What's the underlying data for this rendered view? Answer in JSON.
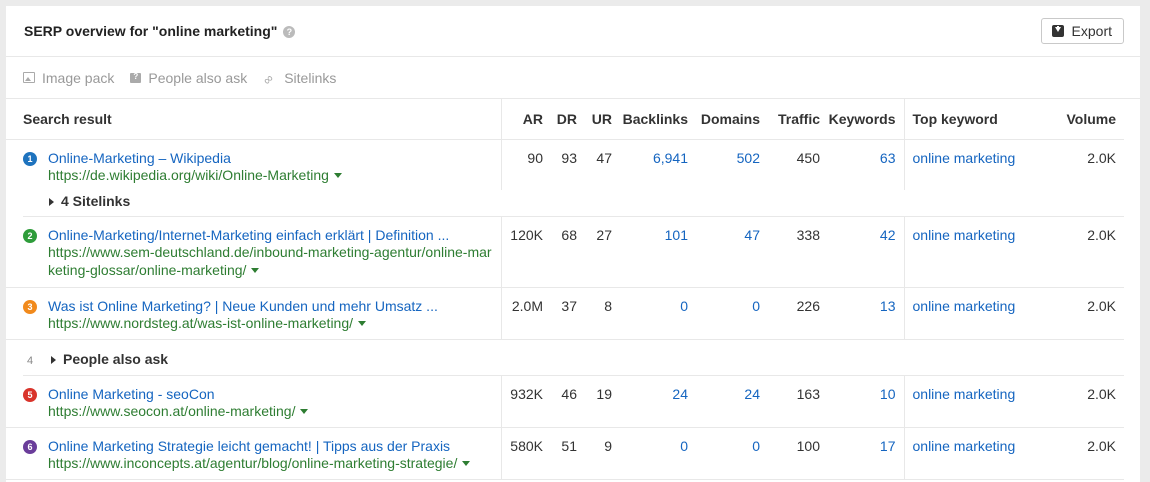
{
  "header": {
    "title": "SERP overview for \"online marketing\"",
    "help_glyph": "?",
    "export_label": "Export"
  },
  "features": [
    {
      "label": "Image pack",
      "icon": "image-icon"
    },
    {
      "label": "People also ask",
      "icon": "question-bubble-icon"
    },
    {
      "label": "Sitelinks",
      "icon": "link-icon"
    }
  ],
  "columns": {
    "search_result": "Search result",
    "ar": "AR",
    "dr": "DR",
    "ur": "UR",
    "backlinks": "Backlinks",
    "domains": "Domains",
    "traffic": "Traffic",
    "keywords": "Keywords",
    "top_keyword": "Top keyword",
    "volume": "Volume"
  },
  "colors": {
    "badge_blue": "#1e73be",
    "badge_green": "#2e9c3a",
    "badge_orange": "#f18a1c",
    "badge_red": "#d9342b",
    "badge_purple": "#6a3d9a",
    "link": "#1565c0",
    "url": "#2e7d32"
  },
  "rows": [
    {
      "num": "1",
      "title": "Online-Marketing – Wikipedia",
      "url": "https://de.wikipedia.org/wiki/Online-Marketing",
      "ar": "90",
      "dr": "93",
      "ur": "47",
      "backlinks": "6,941",
      "domains": "502",
      "traffic": "450",
      "keywords": "63",
      "top_keyword": "online marketing",
      "volume": "2.0K"
    },
    {
      "num": "2",
      "title": "Online-Marketing/Internet-Marketing einfach erklärt | Definition ...",
      "url": "https://www.sem-deutschland.de/inbound-marketing-agentur/online-marketing-glossar/online-marketing/",
      "ar": "120K",
      "dr": "68",
      "ur": "27",
      "backlinks": "101",
      "domains": "47",
      "traffic": "338",
      "keywords": "42",
      "top_keyword": "online marketing",
      "volume": "2.0K"
    },
    {
      "num": "3",
      "title": "Was ist Online Marketing? | Neue Kunden und mehr Umsatz ...",
      "url": "https://www.nordsteg.at/was-ist-online-marketing/",
      "ar": "2.0M",
      "dr": "37",
      "ur": "8",
      "backlinks": "0",
      "domains": "0",
      "traffic": "226",
      "keywords": "13",
      "top_keyword": "online marketing",
      "volume": "2.0K"
    },
    {
      "num": "5",
      "title": "Online Marketing - seoCon",
      "url": "https://www.seocon.at/online-marketing/",
      "ar": "932K",
      "dr": "46",
      "ur": "19",
      "backlinks": "24",
      "domains": "24",
      "traffic": "163",
      "keywords": "10",
      "top_keyword": "online marketing",
      "volume": "2.0K"
    },
    {
      "num": "6",
      "title": "Online Marketing Strategie leicht gemacht! | Tipps aus der Praxis",
      "url": "https://www.inconcepts.at/agentur/blog/online-marketing-strategie/",
      "ar": "580K",
      "dr": "51",
      "ur": "9",
      "backlinks": "0",
      "domains": "0",
      "traffic": "100",
      "keywords": "17",
      "top_keyword": "online marketing",
      "volume": "2.0K"
    }
  ],
  "sitelinks_label": "4 Sitelinks",
  "paa": {
    "num": "4",
    "label": "People also ask"
  }
}
